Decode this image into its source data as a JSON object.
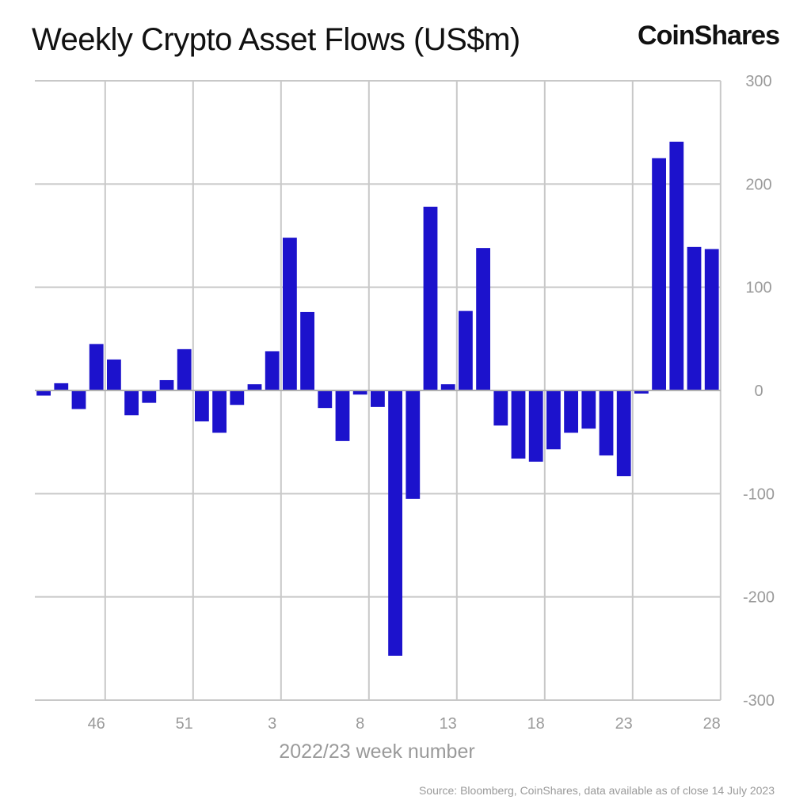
{
  "title": "Weekly Crypto Asset Flows (US$m)",
  "logo": "CoinShares",
  "source": "Source: Bloomberg, CoinShares, data available as of close 14 July 2023",
  "chart_data": {
    "type": "bar",
    "title": "Weekly Crypto Asset Flows (US$m)",
    "xlabel": "2022/23 week number",
    "ylabel": "",
    "ylim": [
      -300,
      300
    ],
    "yticks": [
      300,
      200,
      100,
      0,
      -100,
      -200,
      -300
    ],
    "y_axis_side": "right",
    "grid": true,
    "bar_color": "#1c12cc",
    "categories": [
      "",
      "",
      "",
      "46",
      "",
      "",
      "",
      "",
      "51",
      "",
      "",
      "",
      "",
      "3",
      "",
      "",
      "",
      "",
      "8",
      "",
      "",
      "",
      "",
      "13",
      "",
      "",
      "",
      "",
      "18",
      "",
      "",
      "",
      "",
      "23",
      "",
      "",
      "",
      "",
      "28"
    ],
    "values": [
      -5,
      7,
      -18,
      45,
      30,
      -24,
      -12,
      10,
      40,
      -30,
      -41,
      -14,
      6,
      38,
      148,
      76,
      -17,
      -49,
      -4,
      -16,
      -257,
      -105,
      178,
      6,
      77,
      138,
      -34,
      -66,
      -69,
      -57,
      -41,
      -37,
      -63,
      -83,
      -3,
      225,
      241,
      139,
      137
    ]
  }
}
